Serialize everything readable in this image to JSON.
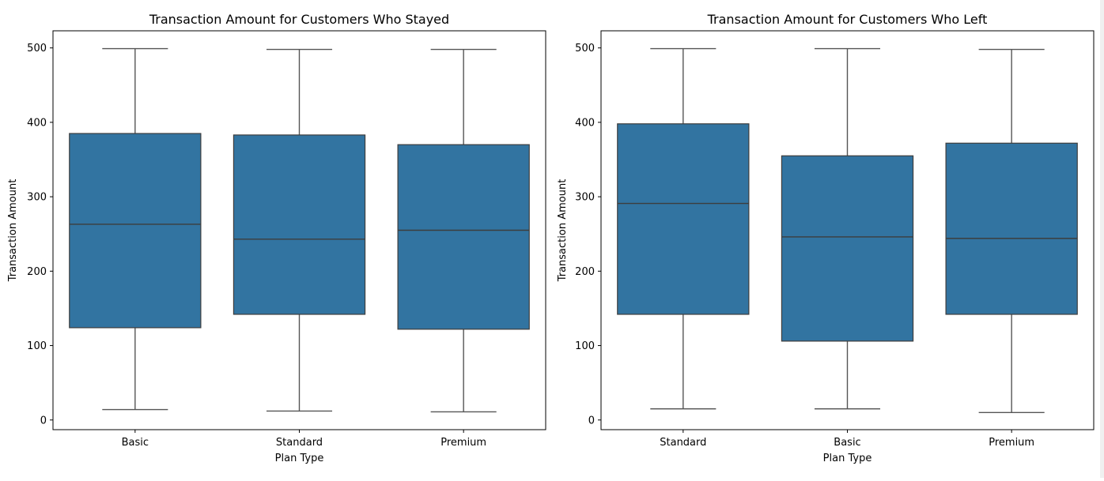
{
  "chart_data": [
    {
      "type": "box",
      "title": "Transaction Amount for Customers Who Stayed",
      "xlabel": "Plan Type",
      "ylabel": "Transaction Amount",
      "ylim": [
        -13,
        523
      ],
      "yticks": [
        0,
        100,
        200,
        300,
        400,
        500
      ],
      "categories": [
        "Basic",
        "Standard",
        "Premium"
      ],
      "boxes": [
        {
          "whislo": 14,
          "q1": 124,
          "med": 263,
          "q3": 385,
          "whishi": 499
        },
        {
          "whislo": 12,
          "q1": 142,
          "med": 243,
          "q3": 383,
          "whishi": 498
        },
        {
          "whislo": 11,
          "q1": 122,
          "med": 255,
          "q3": 370,
          "whishi": 498
        }
      ],
      "color": "#3274a1"
    },
    {
      "type": "box",
      "title": "Transaction Amount for Customers Who Left",
      "xlabel": "Plan Type",
      "ylabel": "Transaction Amount",
      "ylim": [
        -13,
        523
      ],
      "yticks": [
        0,
        100,
        200,
        300,
        400,
        500
      ],
      "categories": [
        "Standard",
        "Basic",
        "Premium"
      ],
      "boxes": [
        {
          "whislo": 15,
          "q1": 142,
          "med": 291,
          "q3": 398,
          "whishi": 499
        },
        {
          "whislo": 15,
          "q1": 106,
          "med": 246,
          "q3": 355,
          "whishi": 499
        },
        {
          "whislo": 10,
          "q1": 142,
          "med": 244,
          "q3": 372,
          "whishi": 498
        }
      ],
      "color": "#3274a1"
    }
  ]
}
